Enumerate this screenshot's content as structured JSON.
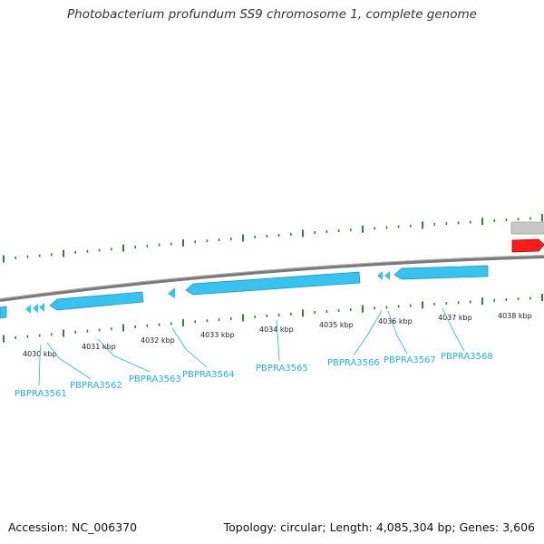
{
  "title": "Photobacterium profundum SS9 chromosome 1, complete genome",
  "footer": {
    "accession": "Accession: NC_006370",
    "topology": "Topology: circular; Length: 4,085,304 bp; Genes: 3,606"
  },
  "colors": {
    "backbone": "#888888",
    "gene_reverse": "#36c3f0",
    "gene_label": "#1fb6e0",
    "gc_tick": "#2a8a2a",
    "feature_red": "#ff0000",
    "feature_grey": "#c8c8c8"
  },
  "kbp_labels": [
    "4030 kbp",
    "4031 kbp",
    "4032 kbp",
    "4033 kbp",
    "4034 kbp",
    "4035 kbp",
    "4036 kbp",
    "4037 kbp",
    "4038 kbp"
  ],
  "genes": [
    "PBPRA3561",
    "PBPRA3562",
    "PBPRA3563",
    "PBPRA3564",
    "PBPRA3565",
    "PBPRA3566",
    "PBPRA3567",
    "PBPRA3568"
  ]
}
